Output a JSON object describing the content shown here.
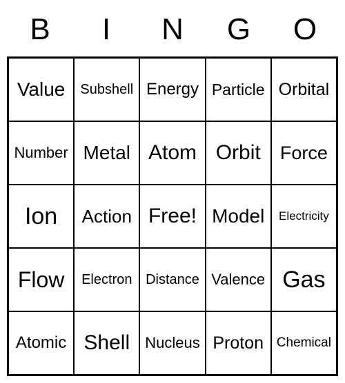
{
  "header": [
    "B",
    "I",
    "N",
    "G",
    "O"
  ],
  "cells": [
    {
      "text": "Value",
      "size": 28
    },
    {
      "text": "Subshell",
      "size": 20
    },
    {
      "text": "Energy",
      "size": 24
    },
    {
      "text": "Particle",
      "size": 23
    },
    {
      "text": "Orbital",
      "size": 25
    },
    {
      "text": "Number",
      "size": 22
    },
    {
      "text": "Metal",
      "size": 28
    },
    {
      "text": "Atom",
      "size": 30
    },
    {
      "text": "Orbit",
      "size": 30
    },
    {
      "text": "Force",
      "size": 27
    },
    {
      "text": "Ion",
      "size": 34
    },
    {
      "text": "Action",
      "size": 26
    },
    {
      "text": "Free!",
      "size": 30
    },
    {
      "text": "Model",
      "size": 28
    },
    {
      "text": "Electricity",
      "size": 17
    },
    {
      "text": "Flow",
      "size": 32
    },
    {
      "text": "Electron",
      "size": 20
    },
    {
      "text": "Distance",
      "size": 20
    },
    {
      "text": "Valence",
      "size": 22
    },
    {
      "text": "Gas",
      "size": 34
    },
    {
      "text": "Atomic",
      "size": 24
    },
    {
      "text": "Shell",
      "size": 30
    },
    {
      "text": "Nucleus",
      "size": 22
    },
    {
      "text": "Proton",
      "size": 25
    },
    {
      "text": "Chemical",
      "size": 19
    }
  ],
  "colors": {
    "background": "#ffffff",
    "text": "#000000",
    "border": "#000000"
  }
}
